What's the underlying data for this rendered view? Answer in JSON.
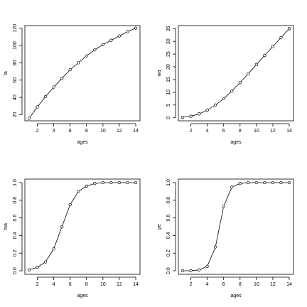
{
  "chart_data": [
    {
      "type": "line",
      "x_label": "ages",
      "y_label": "la",
      "color": "#000000",
      "x": [
        1,
        2,
        3,
        4,
        5,
        6,
        7,
        8,
        9,
        10,
        11,
        12,
        13,
        14
      ],
      "values": [
        16,
        29,
        41,
        52,
        62,
        72,
        80,
        88,
        95,
        101,
        106,
        111,
        116,
        120
      ],
      "xlim": [
        0.48,
        14.52
      ],
      "ylim": [
        13,
        123
      ],
      "xticks": [
        2,
        4,
        6,
        8,
        10,
        12,
        14
      ],
      "yticks": [
        20,
        40,
        60,
        80,
        100,
        120
      ]
    },
    {
      "type": "line",
      "x_label": "ages",
      "y_label": "wa",
      "color": "#000000",
      "x": [
        1,
        2,
        3,
        4,
        5,
        6,
        7,
        8,
        9,
        10,
        11,
        12,
        13,
        14
      ],
      "values": [
        0.2,
        0.6,
        1.5,
        3,
        5,
        7.5,
        10.5,
        13.8,
        17.3,
        20.9,
        24.5,
        28,
        31.5,
        35
      ],
      "xlim": [
        0.48,
        14.52
      ],
      "ylim": [
        -1.2,
        36.2
      ],
      "xticks": [
        2,
        4,
        6,
        8,
        10,
        12,
        14
      ],
      "yticks": [
        0,
        5,
        10,
        15,
        20,
        25,
        30,
        35
      ]
    },
    {
      "type": "line",
      "x_label": "ages",
      "y_label": "ma",
      "color": "#000000",
      "x": [
        1,
        2,
        3,
        4,
        5,
        6,
        7,
        8,
        9,
        10,
        11,
        12,
        13,
        14
      ],
      "values": [
        0.01,
        0.04,
        0.1,
        0.25,
        0.5,
        0.75,
        0.9,
        0.96,
        0.99,
        1,
        1,
        1,
        1,
        1
      ],
      "xlim": [
        0.48,
        14.52
      ],
      "ylim": [
        -0.04,
        1.04
      ],
      "xticks": [
        2,
        4,
        6,
        8,
        10,
        12,
        14
      ],
      "yticks": [
        {
          "value": 0,
          "label": "0.0"
        },
        0.2,
        0.4,
        0.6,
        0.8,
        {
          "value": 1,
          "label": "1.0"
        }
      ]
    },
    {
      "type": "line",
      "x_label": "ages",
      "y_label": "pe",
      "color": "#000000",
      "x": [
        1,
        2,
        3,
        4,
        5,
        6,
        7,
        8,
        9,
        10,
        11,
        12,
        13,
        14
      ],
      "values": [
        0,
        0,
        0.01,
        0.05,
        0.27,
        0.73,
        0.95,
        0.99,
        1,
        1,
        1,
        1,
        1,
        1
      ],
      "xlim": [
        0.48,
        14.52
      ],
      "ylim": [
        -0.04,
        1.04
      ],
      "xticks": [
        2,
        4,
        6,
        8,
        10,
        12,
        14
      ],
      "yticks": [
        {
          "value": 0,
          "label": "0.0"
        },
        0.2,
        0.4,
        0.6,
        0.8,
        {
          "value": 1,
          "label": "1.0"
        }
      ]
    }
  ]
}
